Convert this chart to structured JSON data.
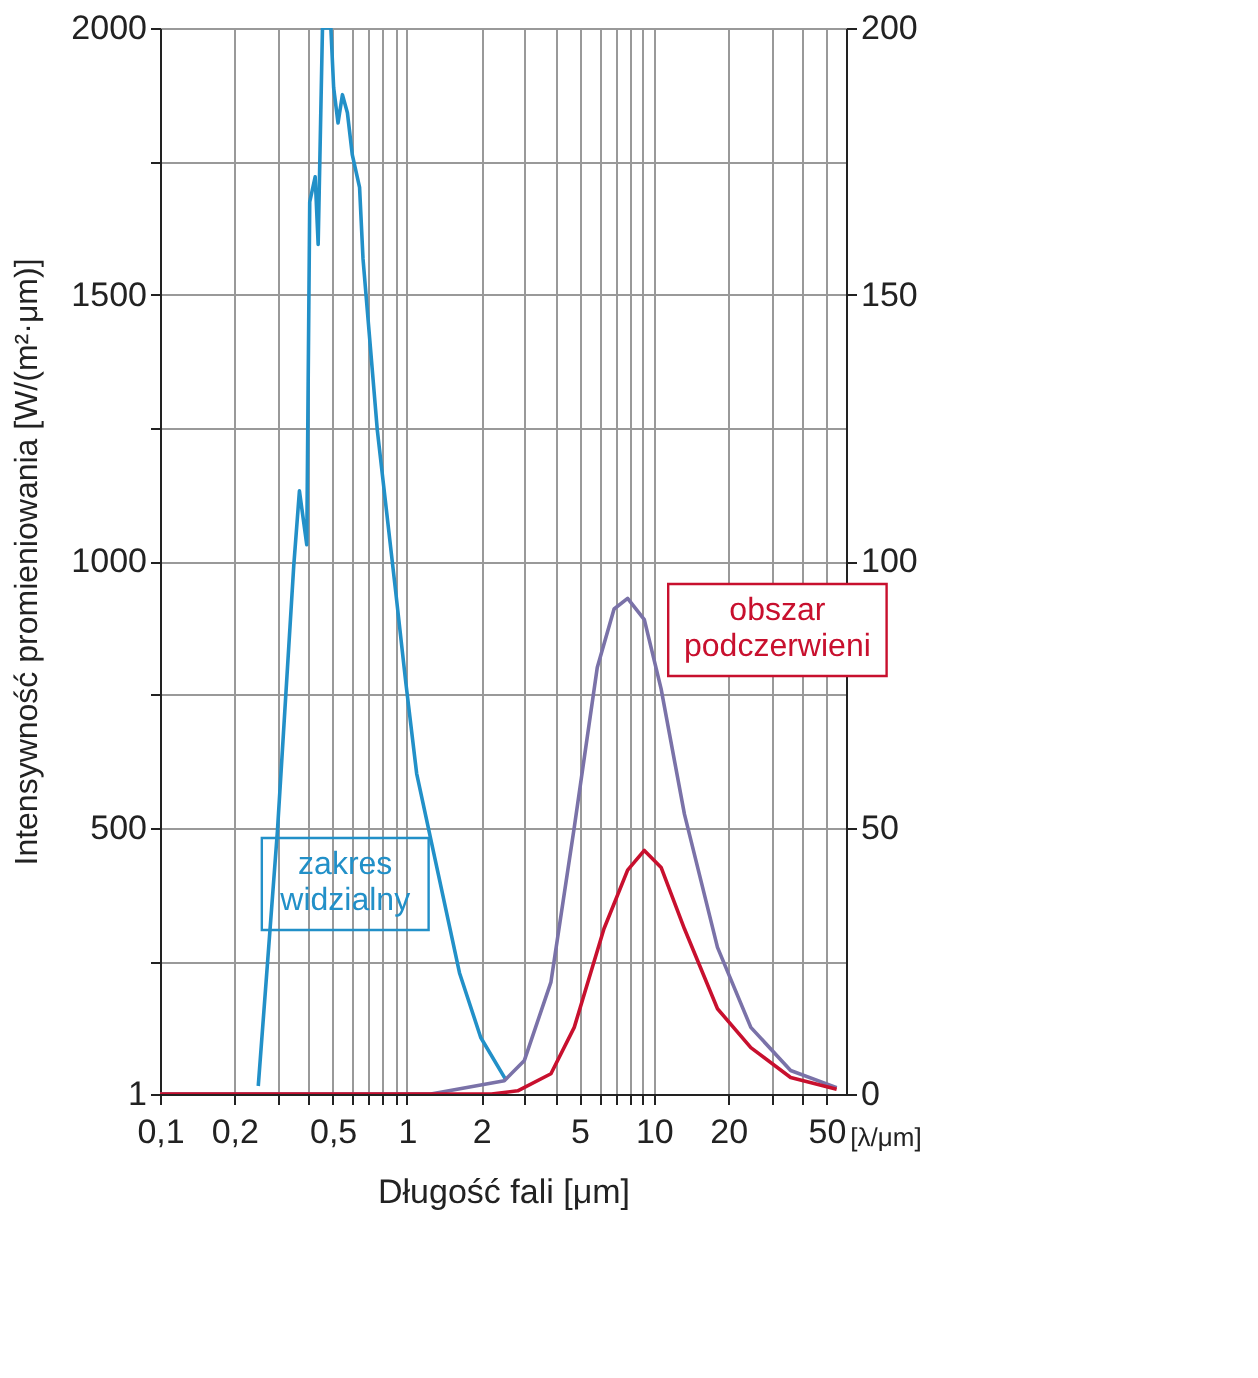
{
  "chart_data": {
    "type": "line",
    "xlabel": "Długość fali [μm]",
    "ylabel": "Intensywność promieniowania [W/(m²·μm)]",
    "log": "x",
    "grid": true,
    "marker": "none",
    "line_style": "solid",
    "xlim": [
      0.1,
      60
    ],
    "xticks": [
      {
        "value": 0.1,
        "label": "0,1"
      },
      {
        "value": 0.2,
        "label": "0,2"
      },
      {
        "value": 0.3,
        "label": null
      },
      {
        "value": 0.4,
        "label": null
      },
      {
        "value": 0.5,
        "label": "0,5"
      },
      {
        "value": 0.6,
        "label": null
      },
      {
        "value": 0.7,
        "label": null
      },
      {
        "value": 0.8,
        "label": null
      },
      {
        "value": 0.9,
        "label": null
      },
      1,
      2,
      {
        "value": 3,
        "label": null
      },
      {
        "value": 4,
        "label": null
      },
      5,
      {
        "value": 6,
        "label": null
      },
      {
        "value": 7,
        "label": null
      },
      {
        "value": 8,
        "label": null
      },
      {
        "value": 9,
        "label": null
      },
      10,
      20,
      {
        "value": 30,
        "label": null
      },
      {
        "value": 40,
        "label": null
      },
      50
    ],
    "ylim": [
      1,
      2000
    ],
    "yticks": [
      1,
      {
        "value": 250,
        "label": null
      },
      500,
      {
        "value": 750,
        "label": null
      },
      1000,
      {
        "value": 1250,
        "label": null
      },
      1500,
      {
        "value": 1750,
        "label": null
      },
      2000
    ],
    "y2lim": [
      0,
      200
    ],
    "y2ticks": [
      0,
      50,
      100,
      150,
      200
    ],
    "annotations": [
      "zakres\nwidzialny",
      "obszar\npodczerwieni",
      "[λ/μm]"
    ],
    "series": [
      {
        "color": "#2290c8",
        "x": [
          0.25,
          0.299,
          0.348,
          0.367,
          0.393,
          0.404,
          0.425,
          0.437,
          0.455,
          0.492,
          0.505,
          0.526,
          0.548,
          0.574,
          0.601,
          0.643,
          0.664,
          0.759,
          0.896,
          0.991,
          1.095,
          1.337,
          1.633,
          1.99,
          2.52
        ],
        "values": [
          16,
          495,
          991,
          1132,
          1031,
          1674,
          1721,
          1594,
          2000,
          2000,
          1888,
          1822,
          1875,
          1841,
          1762,
          1701,
          1567,
          1245,
          952,
          770,
          602,
          415,
          228,
          107,
          27
        ]
      },
      {
        "color": "#7a72a8",
        "axis": "y2",
        "x": [
          0.1,
          1.25,
          2.48,
          2.99,
          3.83,
          4.76,
          5.9,
          6.9,
          7.83,
          9.15,
          10.7,
          13.3,
          18.1,
          24.7,
          35.8,
          55
        ],
        "values": [
          0,
          0,
          2.5,
          6.3,
          21,
          50,
          80,
          91,
          93,
          89,
          76,
          52.5,
          27.5,
          12.5,
          4.4,
          1.2
        ]
      },
      {
        "color": "#c8102e",
        "axis": "y2",
        "x": [
          0.1,
          2.2,
          2.81,
          3.83,
          4.76,
          6.28,
          7.83,
          9.15,
          10.7,
          13.3,
          18.1,
          24.7,
          35.8,
          55
        ],
        "values": [
          0,
          0,
          0.6,
          3.8,
          12.5,
          31,
          42,
          45.7,
          42.5,
          31,
          16,
          8.7,
          3.1,
          0.9
        ]
      }
    ]
  }
}
